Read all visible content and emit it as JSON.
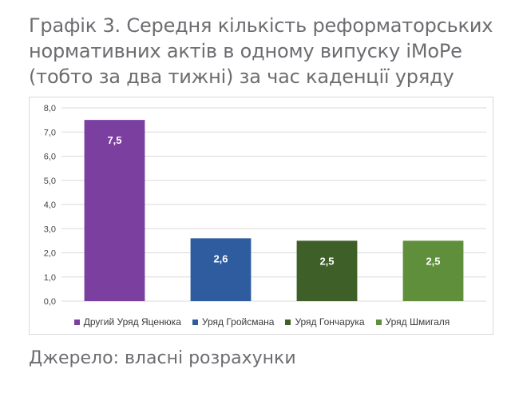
{
  "title_lines": [
    "Графік 3. Середня кількість реформаторських",
    "нормативних актів в одному випуску іМоРе",
    "(тобто за два тижні) за час каденції уряду"
  ],
  "source": "Джерело: власні розрахунки",
  "colors": {
    "text": "#6d6d71",
    "grid": "#d9d9d9",
    "series": [
      "#7b3fa0",
      "#2e5c9e",
      "#3f5f29",
      "#5f8f3a"
    ]
  },
  "chart_data": {
    "type": "bar",
    "categories": [
      "Другий Уряд Яценюка",
      "Уряд Гройсмана",
      "Уряд Гончарука",
      "Уряд Шмигаля"
    ],
    "values": [
      7.5,
      2.6,
      2.5,
      2.5
    ],
    "data_labels": [
      "7,5",
      "2,6",
      "2,5",
      "2,5"
    ],
    "ylim": [
      0,
      8
    ],
    "yticks": [
      0,
      1,
      2,
      3,
      4,
      5,
      6,
      7,
      8
    ],
    "ytick_labels": [
      "0,0",
      "1,0",
      "2,0",
      "3,0",
      "4,0",
      "5,0",
      "6,0",
      "7,0",
      "8,0"
    ],
    "grid": true,
    "legend_position": "bottom",
    "xlabel": "",
    "ylabel": ""
  }
}
